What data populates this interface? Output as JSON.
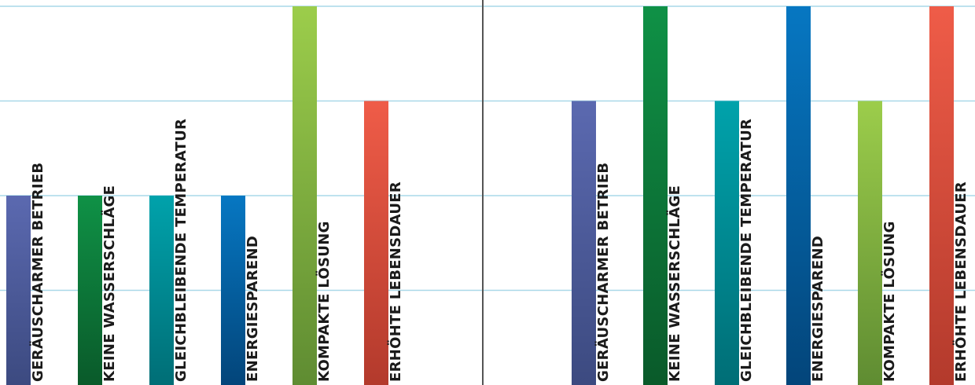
{
  "chart_data": [
    {
      "type": "bar",
      "categories": [
        "GERÄUSCHARMER BETRIEB",
        "KEINE WASSERSCHLÄGE",
        "GLEICHBLEIBENDE TEMPERATUR",
        "ENERGIESPAREND",
        "KOMPAKTE LÖSUNG",
        "ERHÖHTE LEBENSDAUER"
      ],
      "values": [
        2,
        2,
        2,
        2,
        4,
        3
      ],
      "ylim": [
        0,
        4
      ],
      "grid": true,
      "colors": [
        [
          "#5b69b0",
          "#3c4a80"
        ],
        [
          "#0f9146",
          "#0a5a2a"
        ],
        [
          "#00a2ab",
          "#006e76"
        ],
        [
          "#0677c2",
          "#03457a"
        ],
        [
          "#9ccd4b",
          "#5f8c32"
        ],
        [
          "#ef5c48",
          "#b33a2c"
        ]
      ]
    },
    {
      "type": "bar",
      "categories": [
        "GERÄUSCHARMER BETRIEB",
        "KEINE WASSERSCHLÄGE",
        "GLEICHBLEIBENDE TEMPERATUR",
        "ENERGIESPAREND",
        "KOMPAKTE LÖSUNG",
        "ERHÖHTE LEBENSDAUER"
      ],
      "values": [
        3,
        4,
        3,
        4,
        3,
        4
      ],
      "ylim": [
        0,
        4
      ],
      "grid": true,
      "colors": [
        [
          "#5b69b0",
          "#3c4a80"
        ],
        [
          "#0f9146",
          "#0a5a2a"
        ],
        [
          "#00a2ab",
          "#006e76"
        ],
        [
          "#0677c2",
          "#03457a"
        ],
        [
          "#9ccd4b",
          "#5f8c32"
        ],
        [
          "#ef5c48",
          "#b33a2c"
        ]
      ]
    }
  ],
  "style": {
    "grid_color": "#a9d8e8",
    "divider_color": "#555555",
    "label_color": "#1a1a1a"
  }
}
